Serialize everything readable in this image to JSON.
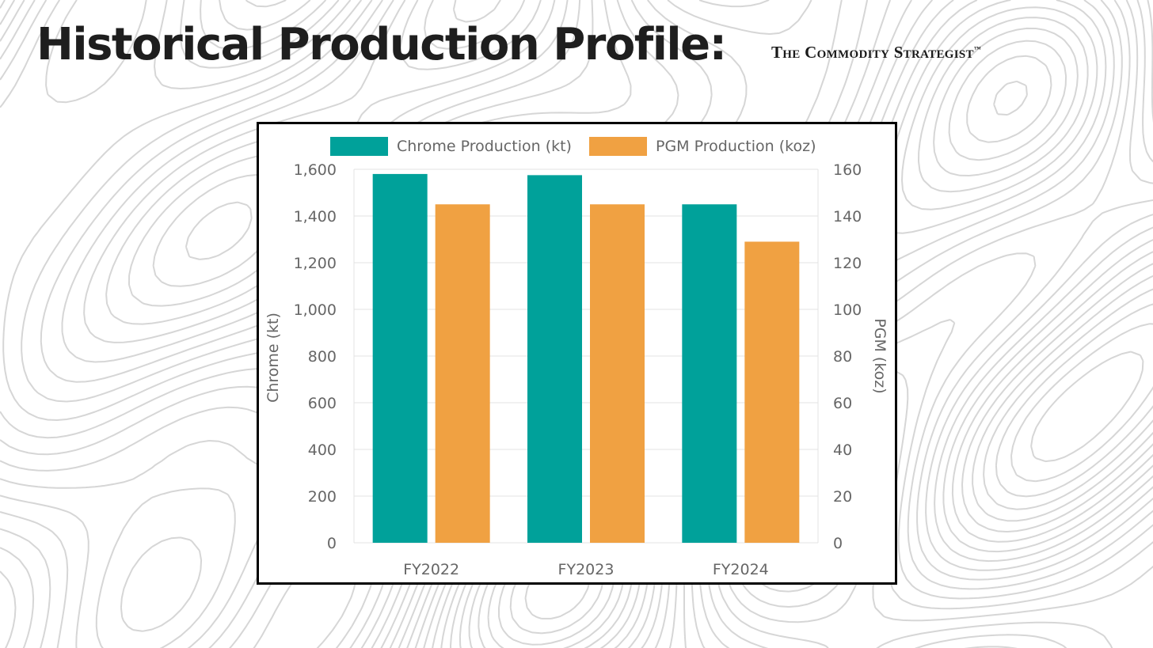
{
  "slide": {
    "title": "Historical Production Profile:",
    "brand": "The Commodity Strategist",
    "brand_mark": "™"
  },
  "colors": {
    "chrome": "#00A19A",
    "pgm": "#F0A142",
    "grid": "#E3E3E3",
    "tick_text": "#666666",
    "contour": "#D6D6D6"
  },
  "chart_data": {
    "type": "bar",
    "categories": [
      "FY2022",
      "FY2023",
      "FY2024"
    ],
    "series": [
      {
        "name": "Chrome Production (kt)",
        "axis": "left",
        "color": "#00A19A",
        "values": [
          1580,
          1575,
          1450
        ]
      },
      {
        "name": "PGM Production (koz)",
        "axis": "right",
        "color": "#F0A142",
        "values": [
          145,
          145,
          129
        ]
      }
    ],
    "ylabel_left": "Chrome (kt)",
    "ylabel_right": "PGM (koz)",
    "ylim_left": [
      0,
      1600
    ],
    "ylim_right": [
      0,
      160
    ],
    "yticks_left": [
      "0",
      "200",
      "400",
      "600",
      "800",
      "1,000",
      "1,200",
      "1,400",
      "1,600"
    ],
    "yticks_right": [
      "0",
      "20",
      "40",
      "60",
      "80",
      "100",
      "120",
      "140",
      "160"
    ],
    "legend_position": "top",
    "grid": true
  }
}
